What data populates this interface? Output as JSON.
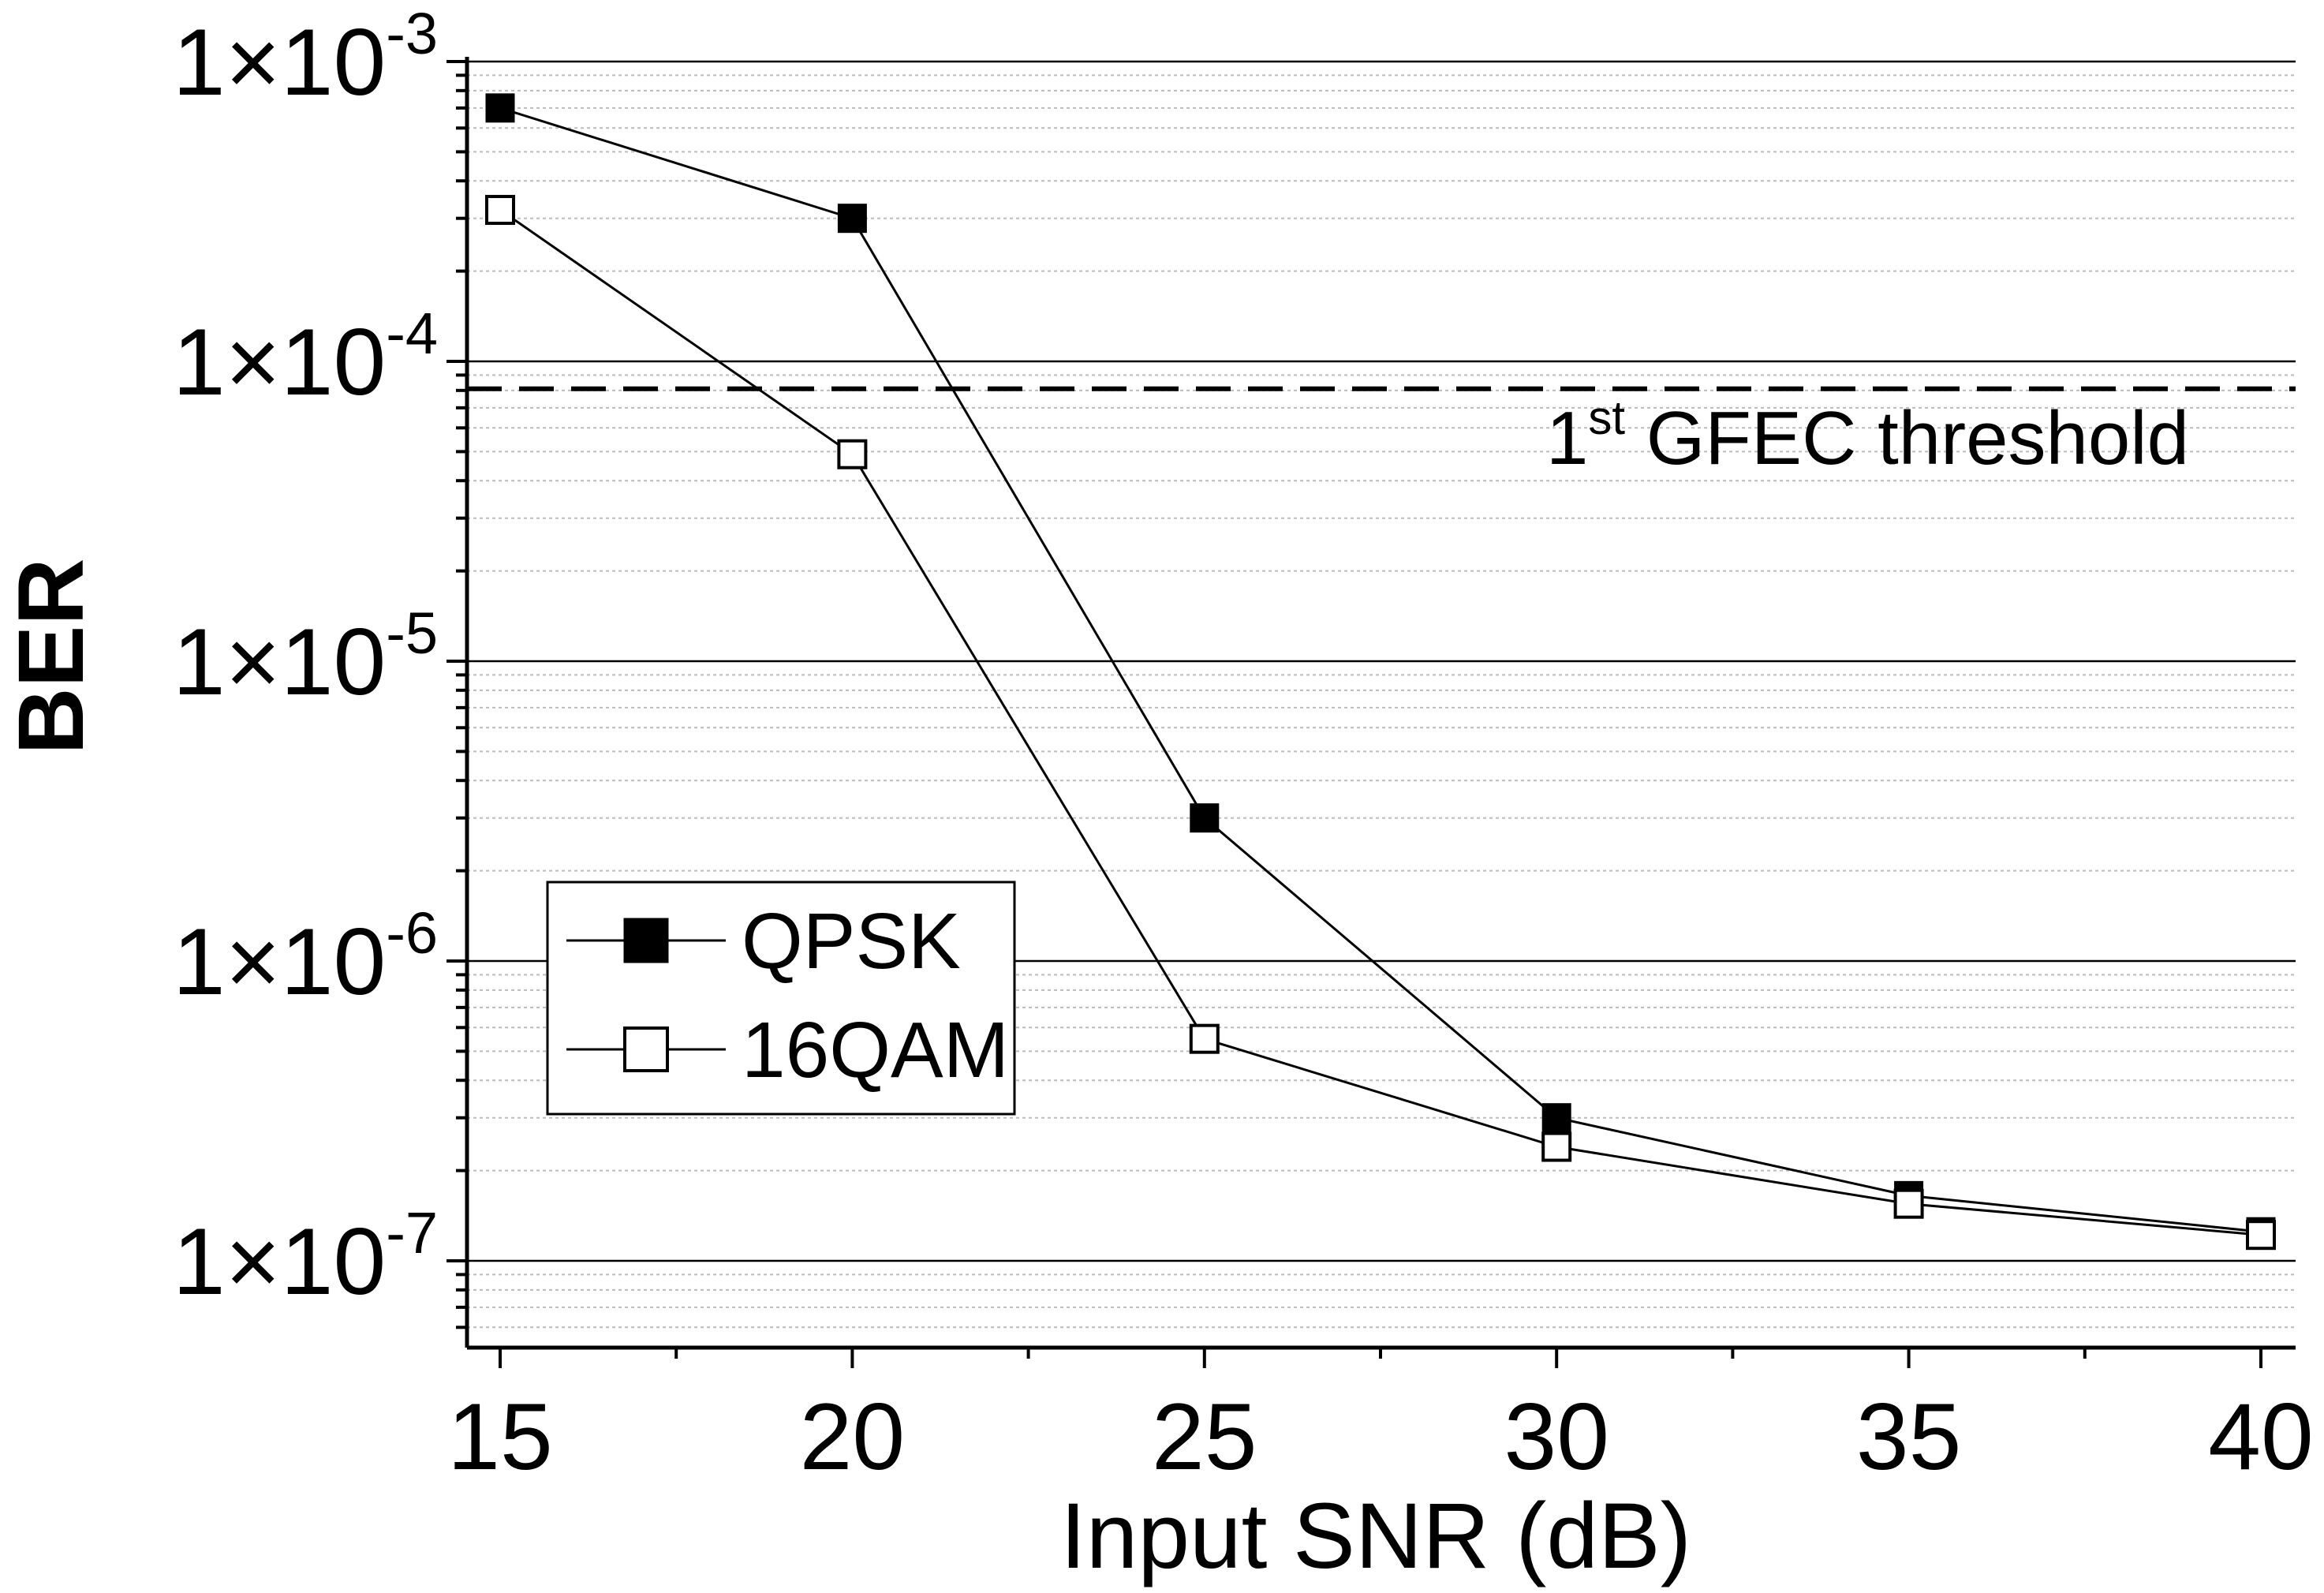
{
  "chart_data": {
    "type": "line",
    "title": "",
    "xlabel": "Input SNR (dB)",
    "ylabel": "BER",
    "yscale": "log",
    "xlim": [
      14.3,
      40.5
    ],
    "ylim": [
      5e-08,
      0.00115
    ],
    "grid": "horizontal",
    "x": [
      15,
      20,
      25,
      30,
      35,
      40
    ],
    "x_ticks": [
      "15",
      "20",
      "25",
      "30",
      "35",
      "40"
    ],
    "y_ticks": [
      {
        "mantissa": "1",
        "times": "×",
        "base": "10",
        "exp": "-3"
      },
      {
        "mantissa": "1",
        "times": "×",
        "base": "10",
        "exp": "-4"
      },
      {
        "mantissa": "1",
        "times": "×",
        "base": "10",
        "exp": "-5"
      },
      {
        "mantissa": "1",
        "times": "×",
        "base": "10",
        "exp": "-6"
      },
      {
        "mantissa": "1",
        "times": "×",
        "base": "10",
        "exp": "-7"
      }
    ],
    "series": [
      {
        "name": "QPSK",
        "marker": "filled-square",
        "values": [
          0.0007,
          0.0003,
          3e-06,
          3e-07,
          1.65e-07,
          1.25e-07
        ]
      },
      {
        "name": "16QAM",
        "marker": "open-square",
        "values": [
          0.00032,
          4.9e-05,
          5.5e-07,
          2.4e-07,
          1.55e-07,
          1.22e-07
        ]
      }
    ],
    "threshold": {
      "value": 8.1e-05,
      "style": "dashed",
      "label_main": "1",
      "label_sup": "st",
      "label_rest": " GFEC threshold"
    },
    "legend": {
      "placement": "lower-left"
    }
  }
}
